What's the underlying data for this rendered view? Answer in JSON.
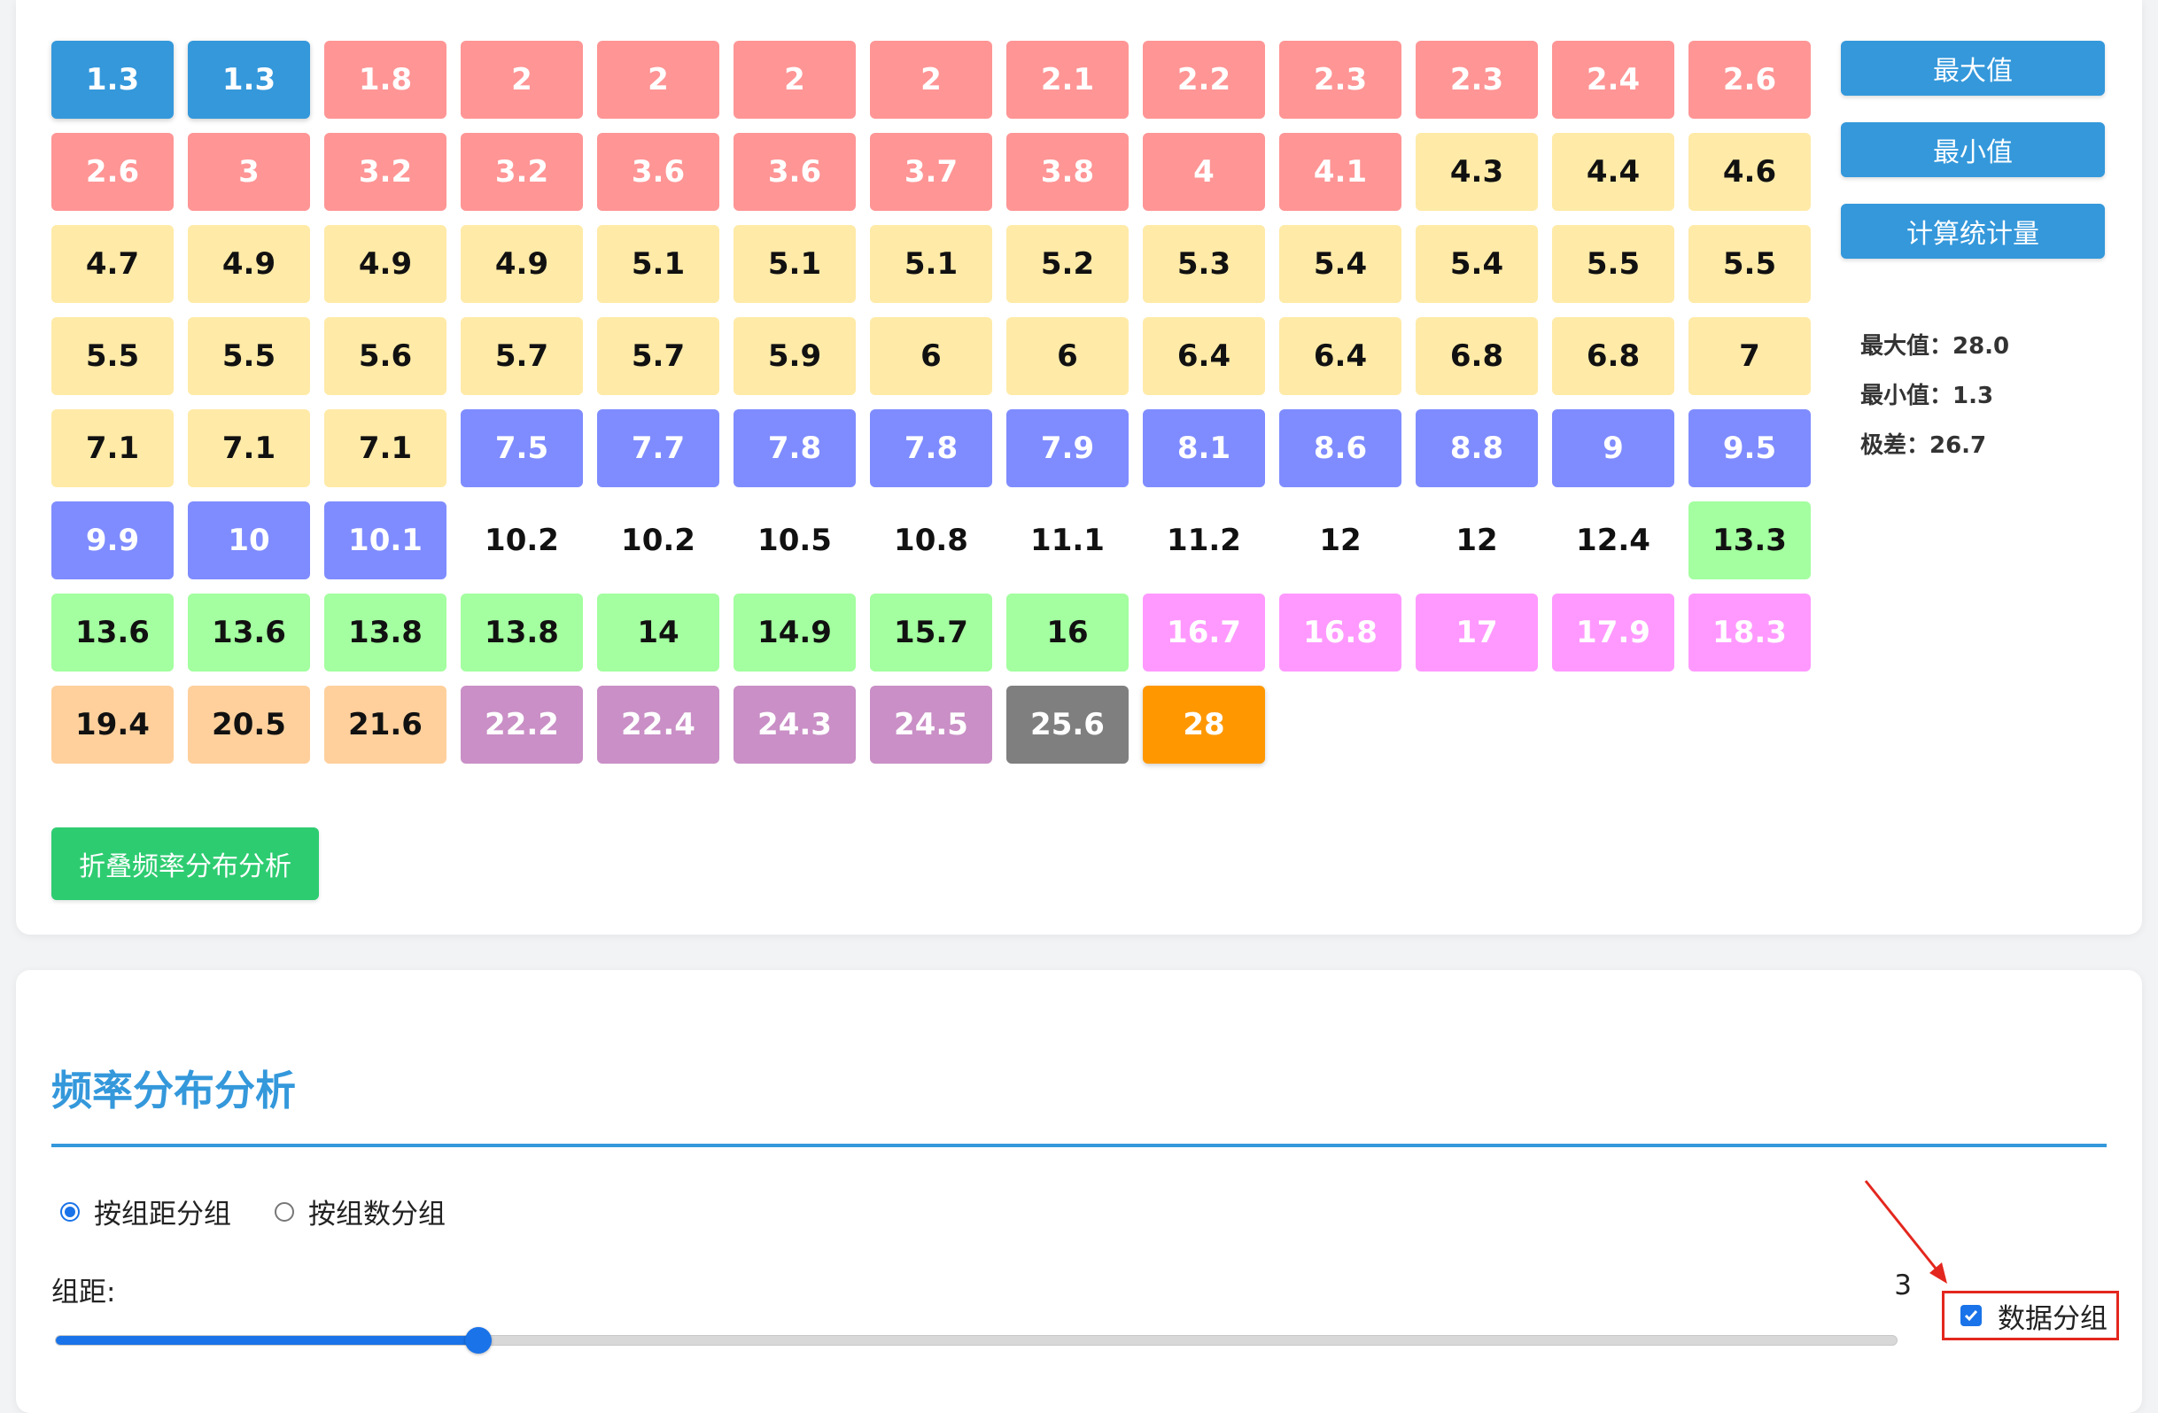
{
  "cells": [
    {
      "v": "1.3",
      "c": "blue"
    },
    {
      "v": "1.3",
      "c": "blue"
    },
    {
      "v": "1.8",
      "c": "red"
    },
    {
      "v": "2",
      "c": "red"
    },
    {
      "v": "2",
      "c": "red"
    },
    {
      "v": "2",
      "c": "red"
    },
    {
      "v": "2",
      "c": "red"
    },
    {
      "v": "2.1",
      "c": "red"
    },
    {
      "v": "2.2",
      "c": "red"
    },
    {
      "v": "2.3",
      "c": "red"
    },
    {
      "v": "2.3",
      "c": "red"
    },
    {
      "v": "2.4",
      "c": "red"
    },
    {
      "v": "2.6",
      "c": "red"
    },
    {
      "v": "2.6",
      "c": "red"
    },
    {
      "v": "3",
      "c": "red"
    },
    {
      "v": "3.2",
      "c": "red"
    },
    {
      "v": "3.2",
      "c": "red"
    },
    {
      "v": "3.6",
      "c": "red"
    },
    {
      "v": "3.6",
      "c": "red"
    },
    {
      "v": "3.7",
      "c": "red"
    },
    {
      "v": "3.8",
      "c": "red"
    },
    {
      "v": "4",
      "c": "red"
    },
    {
      "v": "4.1",
      "c": "red"
    },
    {
      "v": "4.3",
      "c": "yellow"
    },
    {
      "v": "4.4",
      "c": "yellow"
    },
    {
      "v": "4.6",
      "c": "yellow"
    },
    {
      "v": "4.7",
      "c": "yellow"
    },
    {
      "v": "4.9",
      "c": "yellow"
    },
    {
      "v": "4.9",
      "c": "yellow"
    },
    {
      "v": "4.9",
      "c": "yellow"
    },
    {
      "v": "5.1",
      "c": "yellow"
    },
    {
      "v": "5.1",
      "c": "yellow"
    },
    {
      "v": "5.1",
      "c": "yellow"
    },
    {
      "v": "5.2",
      "c": "yellow"
    },
    {
      "v": "5.3",
      "c": "yellow"
    },
    {
      "v": "5.4",
      "c": "yellow"
    },
    {
      "v": "5.4",
      "c": "yellow"
    },
    {
      "v": "5.5",
      "c": "yellow"
    },
    {
      "v": "5.5",
      "c": "yellow"
    },
    {
      "v": "5.5",
      "c": "yellow"
    },
    {
      "v": "5.5",
      "c": "yellow"
    },
    {
      "v": "5.6",
      "c": "yellow"
    },
    {
      "v": "5.7",
      "c": "yellow"
    },
    {
      "v": "5.7",
      "c": "yellow"
    },
    {
      "v": "5.9",
      "c": "yellow"
    },
    {
      "v": "6",
      "c": "yellow"
    },
    {
      "v": "6",
      "c": "yellow"
    },
    {
      "v": "6.4",
      "c": "yellow"
    },
    {
      "v": "6.4",
      "c": "yellow"
    },
    {
      "v": "6.8",
      "c": "yellow"
    },
    {
      "v": "6.8",
      "c": "yellow"
    },
    {
      "v": "7",
      "c": "yellow"
    },
    {
      "v": "7.1",
      "c": "yellow"
    },
    {
      "v": "7.1",
      "c": "yellow"
    },
    {
      "v": "7.1",
      "c": "yellow"
    },
    {
      "v": "7.5",
      "c": "indigo"
    },
    {
      "v": "7.7",
      "c": "indigo"
    },
    {
      "v": "7.8",
      "c": "indigo"
    },
    {
      "v": "7.8",
      "c": "indigo"
    },
    {
      "v": "7.9",
      "c": "indigo"
    },
    {
      "v": "8.1",
      "c": "indigo"
    },
    {
      "v": "8.6",
      "c": "indigo"
    },
    {
      "v": "8.8",
      "c": "indigo"
    },
    {
      "v": "9",
      "c": "indigo"
    },
    {
      "v": "9.5",
      "c": "indigo"
    },
    {
      "v": "9.9",
      "c": "indigo"
    },
    {
      "v": "10",
      "c": "indigo"
    },
    {
      "v": "10.1",
      "c": "indigo"
    },
    {
      "v": "10.2",
      "c": "none"
    },
    {
      "v": "10.2",
      "c": "none"
    },
    {
      "v": "10.5",
      "c": "none"
    },
    {
      "v": "10.8",
      "c": "none"
    },
    {
      "v": "11.1",
      "c": "none"
    },
    {
      "v": "11.2",
      "c": "none"
    },
    {
      "v": "12",
      "c": "none"
    },
    {
      "v": "12",
      "c": "none"
    },
    {
      "v": "12.4",
      "c": "none"
    },
    {
      "v": "13.3",
      "c": "green"
    },
    {
      "v": "13.6",
      "c": "green"
    },
    {
      "v": "13.6",
      "c": "green"
    },
    {
      "v": "13.8",
      "c": "green"
    },
    {
      "v": "13.8",
      "c": "green"
    },
    {
      "v": "14",
      "c": "green"
    },
    {
      "v": "14.9",
      "c": "green"
    },
    {
      "v": "15.7",
      "c": "green"
    },
    {
      "v": "16",
      "c": "green"
    },
    {
      "v": "16.7",
      "c": "pink"
    },
    {
      "v": "16.8",
      "c": "pink"
    },
    {
      "v": "17",
      "c": "pink"
    },
    {
      "v": "17.9",
      "c": "pink"
    },
    {
      "v": "18.3",
      "c": "pink"
    },
    {
      "v": "19.4",
      "c": "peach"
    },
    {
      "v": "20.5",
      "c": "peach"
    },
    {
      "v": "21.6",
      "c": "peach"
    },
    {
      "v": "22.2",
      "c": "purple"
    },
    {
      "v": "22.4",
      "c": "purple"
    },
    {
      "v": "24.3",
      "c": "purple"
    },
    {
      "v": "24.5",
      "c": "purple"
    },
    {
      "v": "25.6",
      "c": "gray"
    },
    {
      "v": "28",
      "c": "orange"
    }
  ],
  "sidebar": {
    "max_button": "最大值",
    "min_button": "最小值",
    "stats_button": "计算统计量",
    "max_stat": "最大值：28.0",
    "min_stat": "最小值：1.3",
    "range_stat": "极差：26.7"
  },
  "fold_button": "折叠频率分布分析",
  "freq": {
    "title": "频率分布分析",
    "radio_width": "按组距分组",
    "radio_count": "按组数分组",
    "bin_label": "组距:",
    "bin_value": "3",
    "slider_fraction": 0.23,
    "group_checkbox_label": "数据分组"
  },
  "colors": {
    "accent": "#3498db",
    "success": "#2ecc71",
    "highlight_border": "#e3271e",
    "arrow": "#e3271e"
  }
}
